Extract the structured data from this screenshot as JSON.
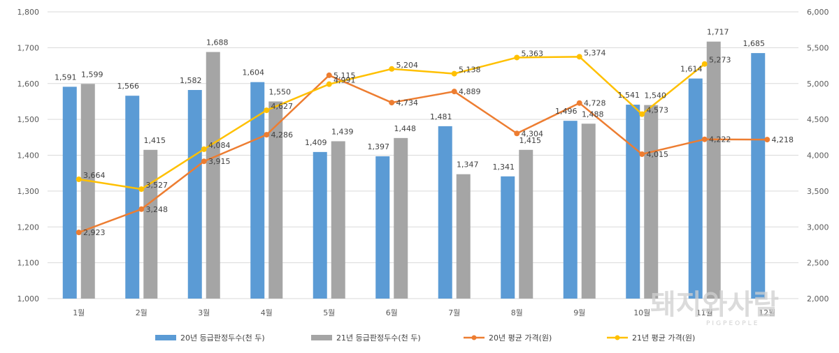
{
  "chart_data": {
    "type": "bar",
    "categories": [
      "1월",
      "2월",
      "3월",
      "4월",
      "5월",
      "6월",
      "7월",
      "8월",
      "9월",
      "10월",
      "11월",
      "12월"
    ],
    "ylim_left": [
      1000,
      1800
    ],
    "ylim_right": [
      2000,
      6000
    ],
    "yticks_left": [
      "1,000",
      "1,100",
      "1,200",
      "1,300",
      "1,400",
      "1,500",
      "1,600",
      "1,700",
      "1,800"
    ],
    "yticks_right": [
      "2,000",
      "2,500",
      "3,000",
      "3,500",
      "4,000",
      "4,500",
      "5,000",
      "5,500",
      "6,000"
    ],
    "grid": true,
    "legend_position": "bottom",
    "series": [
      {
        "name": "20년 등급판정두수(천 두)",
        "kind": "bar",
        "axis": "left",
        "color": "#5b9bd5",
        "values": [
          1591,
          1566,
          1582,
          1604,
          1409,
          1397,
          1481,
          1341,
          1496,
          1541,
          1614,
          1685
        ],
        "labels": [
          "1,591",
          "1,566",
          "1,582",
          "1,604",
          "1,409",
          "1,397",
          "1,481",
          "1,341",
          "1,496",
          "1,541",
          "1,614",
          "1,685"
        ]
      },
      {
        "name": "21년 등급판정두수(천 두)",
        "kind": "bar",
        "axis": "left",
        "color": "#a5a5a5",
        "values": [
          1599,
          1415,
          1688,
          1550,
          1439,
          1448,
          1347,
          1415,
          1488,
          1540,
          1717,
          null
        ],
        "labels": [
          "1,599",
          "1,415",
          "1,688",
          "1,550",
          "1,439",
          "1,448",
          "1,347",
          "1,415",
          "1,488",
          "1,540",
          "1,717",
          null
        ]
      },
      {
        "name": "20년 평균 가격(원)",
        "kind": "line",
        "axis": "right",
        "color": "#ed7d31",
        "values": [
          2923,
          3248,
          3915,
          4286,
          5115,
          4734,
          4889,
          4304,
          4728,
          4015,
          4222,
          4218
        ],
        "labels": [
          "2,923",
          "3,248",
          "3,915",
          "4,286",
          "5,115",
          "4,734",
          "4,889",
          "4,304",
          "4,728",
          "4,015",
          "4,222",
          "4,218"
        ]
      },
      {
        "name": "21년 평균 가격(원)",
        "kind": "line",
        "axis": "right",
        "color": "#ffc000",
        "values": [
          3664,
          3527,
          4084,
          4627,
          4991,
          5204,
          5138,
          5363,
          5374,
          4573,
          5273,
          null
        ],
        "labels": [
          "3,664",
          "3,527",
          "4,084",
          "4,627",
          "4,991",
          "5,204",
          "5,138",
          "5,363",
          "5,374",
          "4,573",
          "5,273",
          null
        ]
      }
    ]
  },
  "watermark": {
    "main": "돼지와사람",
    "sub": "PIGPEOPLE"
  }
}
